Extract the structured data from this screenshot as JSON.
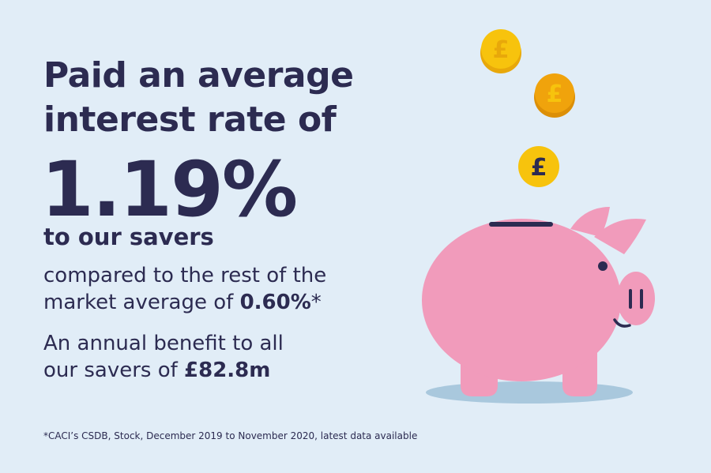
{
  "headline": {
    "line1": "Paid an average",
    "line2": "interest rate of"
  },
  "rate": "1.19%",
  "savers_line": "to our savers",
  "comparison": {
    "line1": "compared to the rest of the",
    "line2_prefix": "market average of ",
    "market_rate": "0.60%",
    "asterisk": "*"
  },
  "benefit": {
    "line1": "An annual benefit to all",
    "line2_prefix": "our savers of ",
    "amount": "£82.8m"
  },
  "footnote": "*CACI’s CSDB, Stock, December 2019 to November 2020, latest data available",
  "illustration": {
    "coin_symbol": "£",
    "colors": {
      "background": "#e1edf7",
      "text": "#2c2b51",
      "pig": "#f19bbb",
      "shadow": "#a9c8dd",
      "coin_gold": "#f7c30d",
      "coin_orange": "#f0a30c"
    }
  }
}
